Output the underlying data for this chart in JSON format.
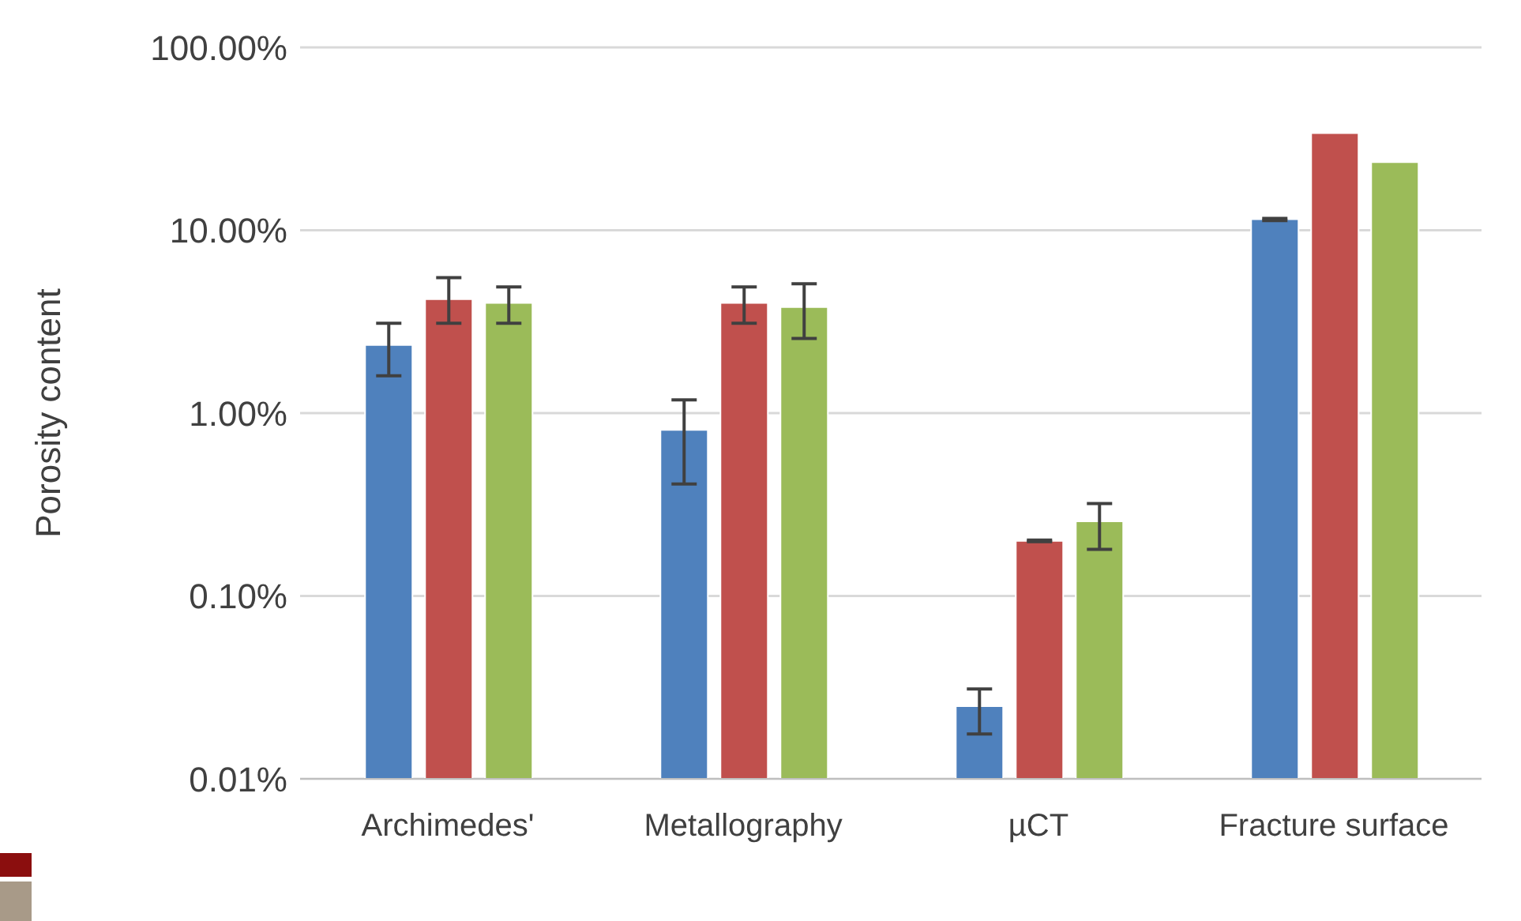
{
  "chart_data": {
    "type": "bar",
    "ylabel": "Porosity content",
    "log": true,
    "grid": "y",
    "legend": false,
    "categories": [
      "Archimedes'",
      "Metallography",
      "µCT",
      "Fracture surface"
    ],
    "series": [
      {
        "color": "#4f81bd",
        "values": [
          2.36,
          0.81,
          0.025,
          11.5
        ],
        "errors": [
          [
            1.6,
            3.1
          ],
          [
            0.41,
            1.18
          ],
          [
            0.0176,
            0.031
          ],
          [
            11.3,
            11.6
          ]
        ]
      },
      {
        "color": "#c0504d",
        "values": [
          4.2,
          4.0,
          0.2,
          34
        ],
        "errors": [
          [
            3.1,
            5.5
          ],
          [
            3.1,
            4.9
          ],
          [
            0.198,
            0.202
          ],
          null
        ]
      },
      {
        "color": "#9bbb59",
        "values": [
          4.0,
          3.8,
          0.256,
          23.6
        ],
        "errors": [
          [
            3.1,
            4.9
          ],
          [
            2.56,
            5.1
          ],
          [
            0.18,
            0.32
          ],
          null
        ]
      }
    ],
    "ylim": [
      0.01,
      100
    ],
    "yticks": [
      {
        "value": 0.01,
        "label": "0.01%"
      },
      {
        "value": 0.1,
        "label": "0.10%"
      },
      {
        "value": 1,
        "label": "1.00%"
      },
      {
        "value": 10,
        "label": "10.00%"
      },
      {
        "value": 100,
        "label": "100.00%"
      }
    ]
  }
}
